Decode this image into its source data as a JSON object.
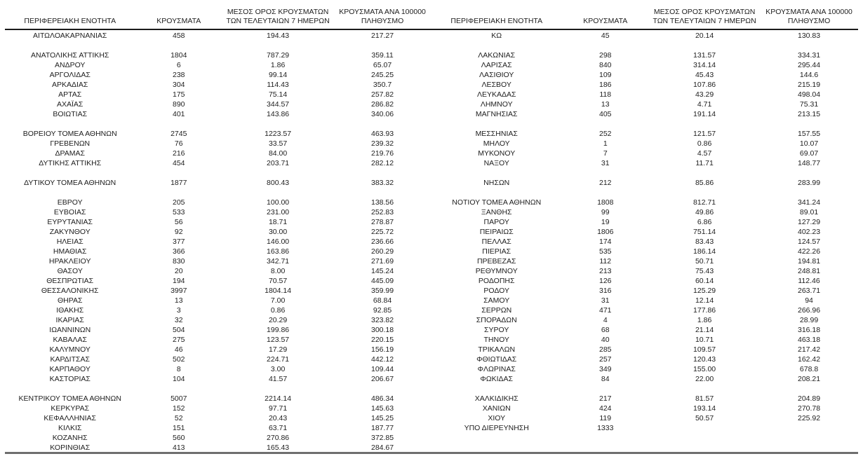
{
  "colors": {
    "text": "#1d1d1d",
    "header_rule": "#1a1a1a",
    "bottom_rule": "#6e6e6e"
  },
  "header": {
    "col_region": "ΠΕΡΙΦΕΡΕΙΑΚΗ ΕΝΟΤΗΤΑ",
    "col_cases": "ΚΡΟΥΣΜΑΤΑ",
    "col_avg7_line1": "ΜΕΣΟΣ ΟΡΟΣ ΚΡΟΥΣΜΑΤΩΝ",
    "col_avg7_line2": "ΤΩΝ ΤΕΛΕΥΤΑΙΩΝ 7 ΗΜΕΡΩΝ",
    "col_per100k_line1": "ΚΡΟΥΣΜΑΤΑ ΑΝΑ 100000",
    "col_per100k_line2": "ΠΛΗΘΥΣΜΟ"
  },
  "left_table": {
    "rows": [
      [
        "ΑΙΤΩΛΟΑΚΑΡΝΑΝΙΑΣ",
        "458",
        "194.43",
        "217.27"
      ],
      [
        "",
        "",
        "",
        ""
      ],
      [
        "ΑΝΑΤΟΛΙΚΗΣ ΑΤΤΙΚΗΣ",
        "1804",
        "787.29",
        "359.11"
      ],
      [
        "ΑΝΔΡΟΥ",
        "6",
        "1.86",
        "65.07"
      ],
      [
        "ΑΡΓΟΛΙΔΑΣ",
        "238",
        "99.14",
        "245.25"
      ],
      [
        "ΑΡΚΑΔΙΑΣ",
        "304",
        "114.43",
        "350.7"
      ],
      [
        "ΑΡΤΑΣ",
        "175",
        "75.14",
        "257.82"
      ],
      [
        "ΑΧΑΪΑΣ",
        "890",
        "344.57",
        "286.82"
      ],
      [
        "ΒΟΙΩΤΙΑΣ",
        "401",
        "143.86",
        "340.06"
      ],
      [
        "",
        "",
        "",
        ""
      ],
      [
        "ΒΟΡΕΙΟΥ ΤΟΜΕΑ ΑΘΗΝΩΝ",
        "2745",
        "1223.57",
        "463.93"
      ],
      [
        "ΓΡΕΒΕΝΩΝ",
        "76",
        "33.57",
        "239.32"
      ],
      [
        "ΔΡΑΜΑΣ",
        "216",
        "84.00",
        "219.76"
      ],
      [
        "ΔΥΤΙΚΗΣ ΑΤΤΙΚΗΣ",
        "454",
        "203.71",
        "282.12"
      ],
      [
        "",
        "",
        "",
        ""
      ],
      [
        "ΔΥΤΙΚΟΥ ΤΟΜΕΑ ΑΘΗΝΩΝ",
        "1877",
        "800.43",
        "383.32"
      ],
      [
        "",
        "",
        "",
        ""
      ],
      [
        "ΕΒΡΟΥ",
        "205",
        "100.00",
        "138.56"
      ],
      [
        "ΕΥΒΟΙΑΣ",
        "533",
        "231.00",
        "252.83"
      ],
      [
        "ΕΥΡΥΤΑΝΙΑΣ",
        "56",
        "18.71",
        "278.87"
      ],
      [
        "ΖΑΚΥΝΘΟΥ",
        "92",
        "30.00",
        "225.72"
      ],
      [
        "ΗΛΕΙΑΣ",
        "377",
        "146.00",
        "236.66"
      ],
      [
        "ΗΜΑΘΙΑΣ",
        "366",
        "163.86",
        "260.29"
      ],
      [
        "ΗΡΑΚΛΕΙΟΥ",
        "830",
        "342.71",
        "271.69"
      ],
      [
        "ΘΑΣΟΥ",
        "20",
        "8.00",
        "145.24"
      ],
      [
        "ΘΕΣΠΡΩΤΙΑΣ",
        "194",
        "70.57",
        "445.09"
      ],
      [
        "ΘΕΣΣΑΛΟΝΙΚΗΣ",
        "3997",
        "1804.14",
        "359.99"
      ],
      [
        "ΘΗΡΑΣ",
        "13",
        "7.00",
        "68.84"
      ],
      [
        "ΙΘΑΚΗΣ",
        "3",
        "0.86",
        "92.85"
      ],
      [
        "ΙΚΑΡΙΑΣ",
        "32",
        "20.29",
        "323.82"
      ],
      [
        "ΙΩΑΝΝΙΝΩΝ",
        "504",
        "199.86",
        "300.18"
      ],
      [
        "ΚΑΒΑΛΑΣ",
        "275",
        "123.57",
        "220.15"
      ],
      [
        "ΚΑΛΥΜΝΟΥ",
        "46",
        "17.29",
        "156.19"
      ],
      [
        "ΚΑΡΔΙΤΣΑΣ",
        "502",
        "224.71",
        "442.12"
      ],
      [
        "ΚΑΡΠΑΘΟΥ",
        "8",
        "3.00",
        "109.44"
      ],
      [
        "ΚΑΣΤΟΡΙΑΣ",
        "104",
        "41.57",
        "206.67"
      ],
      [
        "",
        "",
        "",
        ""
      ],
      [
        "ΚΕΝΤΡΙΚΟΥ ΤΟΜΕΑ ΑΘΗΝΩΝ",
        "5007",
        "2214.14",
        "486.34"
      ],
      [
        "ΚΕΡΚΥΡΑΣ",
        "152",
        "97.71",
        "145.63"
      ],
      [
        "ΚΕΦΑΛΛΗΝΙΑΣ",
        "52",
        "20.43",
        "145.25"
      ],
      [
        "ΚΙΛΚΙΣ",
        "151",
        "63.71",
        "187.77"
      ],
      [
        "ΚΟΖΑΝΗΣ",
        "560",
        "270.86",
        "372.85"
      ],
      [
        "ΚΟΡΙΝΘΙΑΣ",
        "413",
        "165.43",
        "284.67"
      ]
    ]
  },
  "right_table": {
    "rows": [
      [
        "ΚΩ",
        "45",
        "20.14",
        "130.83"
      ],
      [
        "",
        "",
        "",
        ""
      ],
      [
        "ΛΑΚΩΝΙΑΣ",
        "298",
        "131.57",
        "334.31"
      ],
      [
        "ΛΑΡΙΣΑΣ",
        "840",
        "314.14",
        "295.44"
      ],
      [
        "ΛΑΣΙΘΙΟΥ",
        "109",
        "45.43",
        "144.6"
      ],
      [
        "ΛΕΣΒΟΥ",
        "186",
        "107.86",
        "215.19"
      ],
      [
        "ΛΕΥΚΑΔΑΣ",
        "118",
        "43.29",
        "498.04"
      ],
      [
        "ΛΗΜΝΟΥ",
        "13",
        "4.71",
        "75.31"
      ],
      [
        "ΜΑΓΝΗΣΙΑΣ",
        "405",
        "191.14",
        "213.15"
      ],
      [
        "",
        "",
        "",
        ""
      ],
      [
        "ΜΕΣΣΗΝΙΑΣ",
        "252",
        "121.57",
        "157.55"
      ],
      [
        "ΜΗΛΟΥ",
        "1",
        "0.86",
        "10.07"
      ],
      [
        "ΜΥΚΟΝΟΥ",
        "7",
        "4.57",
        "69.07"
      ],
      [
        "ΝΑΞΟΥ",
        "31",
        "11.71",
        "148.77"
      ],
      [
        "",
        "",
        "",
        ""
      ],
      [
        "ΝΗΣΩΝ",
        "212",
        "85.86",
        "283.99"
      ],
      [
        "",
        "",
        "",
        ""
      ],
      [
        "ΝΟΤΙΟΥ ΤΟΜΕΑ ΑΘΗΝΩΝ",
        "1808",
        "812.71",
        "341.24"
      ],
      [
        "ΞΑΝΘΗΣ",
        "99",
        "49.86",
        "89.01"
      ],
      [
        "ΠΑΡΟΥ",
        "19",
        "6.86",
        "127.29"
      ],
      [
        "ΠΕΙΡΑΙΩΣ",
        "1806",
        "751.14",
        "402.23"
      ],
      [
        "ΠΕΛΛΑΣ",
        "174",
        "83.43",
        "124.57"
      ],
      [
        "ΠΙΕΡΙΑΣ",
        "535",
        "186.14",
        "422.26"
      ],
      [
        "ΠΡΕΒΕΖΑΣ",
        "112",
        "50.71",
        "194.81"
      ],
      [
        "ΡΕΘΥΜΝΟΥ",
        "213",
        "75.43",
        "248.81"
      ],
      [
        "ΡΟΔΟΠΗΣ",
        "126",
        "60.14",
        "112.46"
      ],
      [
        "ΡΟΔΟΥ",
        "316",
        "125.29",
        "263.71"
      ],
      [
        "ΣΑΜΟΥ",
        "31",
        "12.14",
        "94"
      ],
      [
        "ΣΕΡΡΩΝ",
        "471",
        "177.86",
        "266.96"
      ],
      [
        "ΣΠΟΡΑΔΩΝ",
        "4",
        "1.86",
        "28.99"
      ],
      [
        "ΣΥΡΟΥ",
        "68",
        "21.14",
        "316.18"
      ],
      [
        "ΤΗΝΟΥ",
        "40",
        "10.71",
        "463.18"
      ],
      [
        "ΤΡΙΚΑΛΩΝ",
        "285",
        "109.57",
        "217.42"
      ],
      [
        "ΦΘΙΩΤΙΔΑΣ",
        "257",
        "120.43",
        "162.42"
      ],
      [
        "ΦΛΩΡΙΝΑΣ",
        "349",
        "155.00",
        "678.8"
      ],
      [
        "ΦΩΚΙΔΑΣ",
        "84",
        "22.00",
        "208.21"
      ],
      [
        "",
        "",
        "",
        ""
      ],
      [
        "ΧΑΛΚΙΔΙΚΗΣ",
        "217",
        "81.57",
        "204.89"
      ],
      [
        "ΧΑΝΙΩΝ",
        "424",
        "193.14",
        "270.78"
      ],
      [
        "ΧΙΟΥ",
        "119",
        "50.57",
        "225.92"
      ],
      [
        "ΥΠΟ ΔΙΕΡΕΥΝΗΣΗ",
        "1333",
        "",
        ""
      ],
      [
        "",
        "",
        "",
        ""
      ],
      [
        "",
        "",
        "",
        ""
      ]
    ]
  }
}
